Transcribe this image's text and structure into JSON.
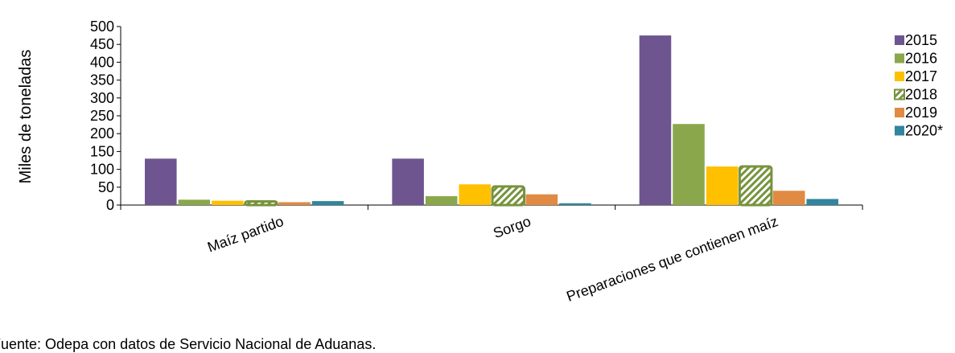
{
  "chart_data": {
    "type": "bar",
    "title": "",
    "xlabel": "",
    "ylabel": "Miles de  toneladas",
    "ylim": [
      0,
      500
    ],
    "yticks": [
      0,
      50,
      100,
      150,
      200,
      250,
      300,
      350,
      400,
      450,
      500
    ],
    "grid": false,
    "legend_position": "right",
    "categories": [
      "Maíz partido",
      "Sorgo",
      "Preparaciones que contienen maíz"
    ],
    "series": [
      {
        "name": "2015",
        "color": "#6f5590",
        "pattern": "solid",
        "values": [
          130,
          130,
          475
        ]
      },
      {
        "name": "2016",
        "color": "#8aa84b",
        "pattern": "solid",
        "values": [
          15,
          25,
          227
        ]
      },
      {
        "name": "2017",
        "color": "#ffc000",
        "pattern": "solid",
        "values": [
          12,
          58,
          108
        ]
      },
      {
        "name": "2018",
        "color": "#77933c",
        "pattern": "hatched",
        "values": [
          10,
          52,
          108
        ]
      },
      {
        "name": "2019",
        "color": "#e08a43",
        "pattern": "solid",
        "values": [
          8,
          30,
          40
        ]
      },
      {
        "name": "2020*",
        "color": "#31859c",
        "pattern": "solid",
        "values": [
          11,
          5,
          17
        ]
      }
    ]
  },
  "source_note": "Fuente: Odepa con datos de Servicio Nacional de Aduanas."
}
